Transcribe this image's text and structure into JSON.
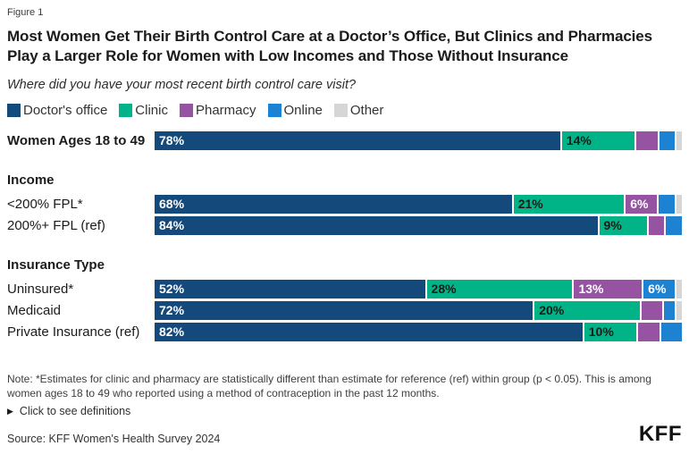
{
  "figure_label": "Figure 1",
  "title": "Most Women Get Their Birth Control Care at a Doctor’s Office, But Clinics and Pharmacies Play a Larger Role for Women with Low Incomes and Those Without Insurance",
  "subtitle": "Where did you have your most recent birth control care visit?",
  "chart_data": {
    "type": "bar",
    "stacked": true,
    "orientation": "horizontal",
    "unit": "percent",
    "x_range": [
      0,
      100
    ],
    "legend": [
      {
        "key": "doctors-office",
        "label": "Doctor's office",
        "color": "#14497B",
        "text_color": "#FFFFFF"
      },
      {
        "key": "clinic",
        "label": "Clinic",
        "color": "#00B487",
        "text_color": "#1A1A1A"
      },
      {
        "key": "pharmacy",
        "label": "Pharmacy",
        "color": "#9553A2",
        "text_color": "#FFFFFF"
      },
      {
        "key": "online",
        "label": "Online",
        "color": "#1E82D2",
        "text_color": "#FFFFFF"
      },
      {
        "key": "other",
        "label": "Other",
        "color": "#D6D6D6",
        "text_color": "#1A1A1A"
      }
    ],
    "groups": [
      {
        "header": "",
        "rows": [
          {
            "label": "Women Ages 18 to 49",
            "bold": true,
            "values": [
              78,
              14,
              4,
              3,
              1
            ],
            "value_labels": [
              "78%",
              "14%",
              "",
              "",
              ""
            ]
          }
        ]
      },
      {
        "header": "Income",
        "rows": [
          {
            "label": "<200% FPL*",
            "bold": false,
            "values": [
              68,
              21,
              6,
              3,
              1
            ],
            "value_labels": [
              "68%",
              "21%",
              "6%",
              "",
              ""
            ]
          },
          {
            "label": "200%+ FPL (ref)",
            "bold": false,
            "values": [
              84,
              9,
              3,
              3,
              0
            ],
            "value_labels": [
              "84%",
              "9%",
              "",
              "",
              ""
            ]
          }
        ]
      },
      {
        "header": "Insurance Type",
        "rows": [
          {
            "label": "Uninsured*",
            "bold": false,
            "values": [
              52,
              28,
              13,
              6,
              1
            ],
            "value_labels": [
              "52%",
              "28%",
              "13%",
              "6%",
              ""
            ]
          },
          {
            "label": "Medicaid",
            "bold": false,
            "values": [
              72,
              20,
              4,
              2,
              1
            ],
            "value_labels": [
              "72%",
              "20%",
              "",
              "",
              ""
            ]
          },
          {
            "label": "Private Insurance (ref)",
            "bold": false,
            "values": [
              82,
              10,
              4,
              4,
              0
            ],
            "value_labels": [
              "82%",
              "10%",
              "",
              "",
              ""
            ]
          }
        ]
      }
    ]
  },
  "note": "Note: *Estimates for clinic and pharmacy are statistically different than estimate for reference (ref) within group (p < 0.05). This is among women ages 18 to 49 who reported using a method of contraception in the past 12 months.",
  "definitions_toggle": {
    "icon": "▶",
    "label": "Click to see definitions"
  },
  "source": "Source: KFF Women's Health Survey 2024",
  "logo_text": "KFF"
}
